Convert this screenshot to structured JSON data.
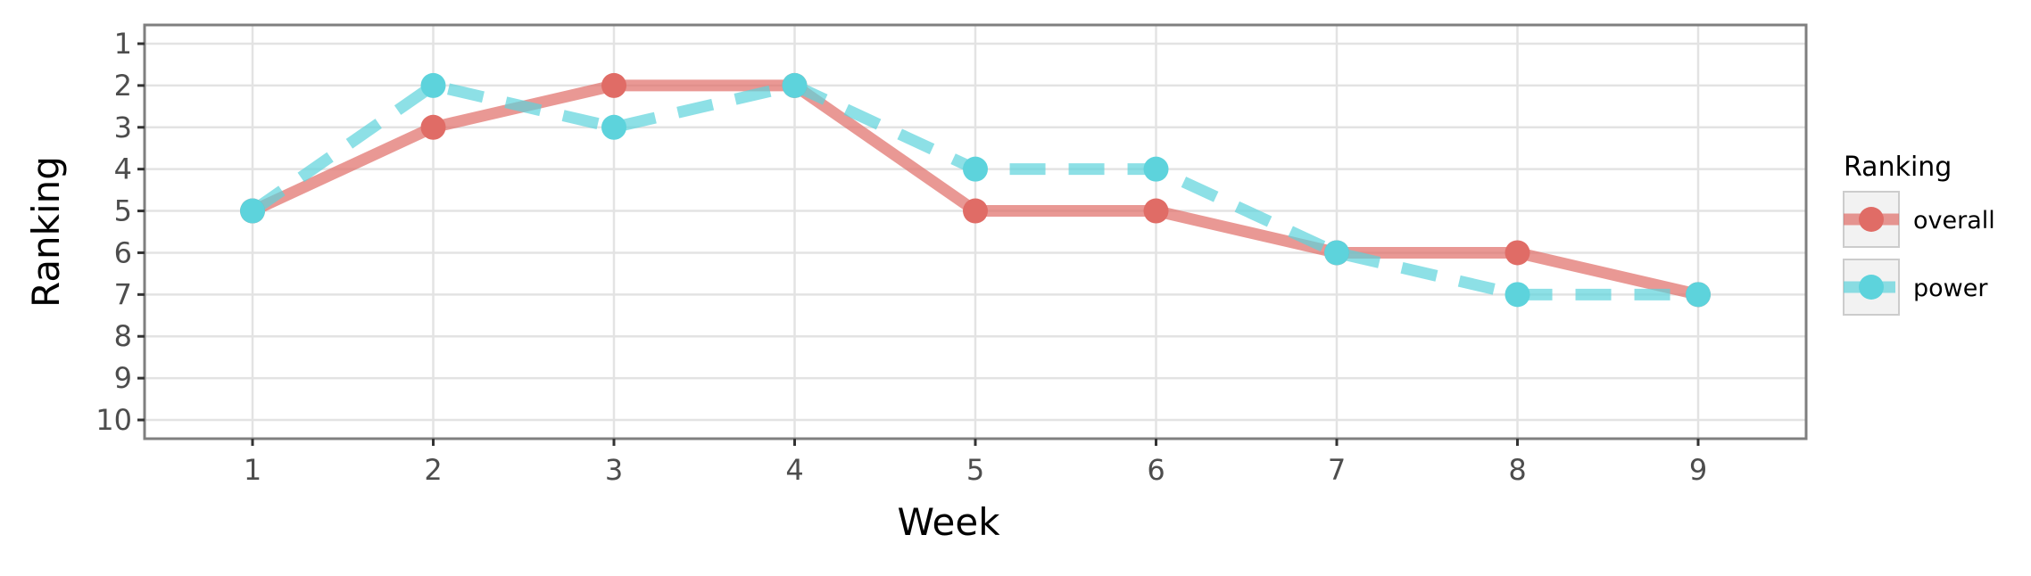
{
  "chart_data": {
    "type": "line",
    "x": [
      1,
      2,
      3,
      4,
      5,
      6,
      7,
      8,
      9
    ],
    "series": [
      {
        "name": "overall",
        "values": [
          5,
          3,
          2,
          2,
          5,
          5,
          6,
          6,
          7
        ],
        "color": "#e06c66",
        "line_style": "solid"
      },
      {
        "name": "power",
        "values": [
          5,
          2,
          3,
          2,
          4,
          4,
          6,
          7,
          7
        ],
        "color": "#5dd3dc",
        "line_style": "dashed"
      }
    ],
    "xlabel": "Week",
    "ylabel": "Ranking",
    "xlim": [
      0.4,
      9.6
    ],
    "ylim": [
      1,
      10
    ],
    "y_reversed": true,
    "x_ticks": [
      "1",
      "2",
      "3",
      "4",
      "5",
      "6",
      "7",
      "8",
      "9"
    ],
    "y_ticks": [
      "1",
      "2",
      "3",
      "4",
      "5",
      "6",
      "7",
      "8",
      "9",
      "10"
    ],
    "legend_title": "Ranking",
    "legend_position": "right",
    "grid": true
  }
}
